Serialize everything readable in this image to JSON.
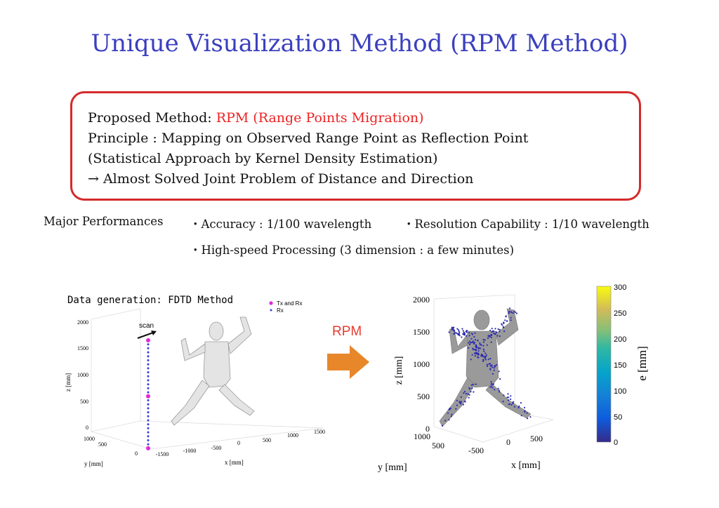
{
  "title": "Unique Visualization Method (RPM Method)",
  "box": {
    "line1_prefix": "Proposed Method: ",
    "line1_highlight": "RPM (Range Points Migration)",
    "line2": "Principle : Mapping on Observed Range Point as Reflection Point",
    "line3": "(Statistical Approach by Kernel Density Estimation)",
    "line4": "→ Almost Solved Joint Problem of Distance and Direction",
    "border_color": "#d42a2a",
    "highlight_color": "#e22222"
  },
  "performance": {
    "label": "Major Performances",
    "accuracy": "・Accuracy : 1/100 wavelength",
    "resolution": "・Resolution Capability : 1/10 wavelength",
    "speed": "・High-speed Processing (3 dimension : a few minutes)"
  },
  "left_plot": {
    "caption": "Data generation: FDTD Method",
    "legend": [
      "Tx and Rx",
      "Rx"
    ],
    "scan_label": "scan",
    "z_ticks": [
      "2000",
      "1500",
      "1000",
      "500",
      "0"
    ],
    "y_ticks": [
      "1000",
      "500",
      "0"
    ],
    "x_ticks": [
      "-1500",
      "-1000",
      "-500",
      "0",
      "500",
      "1000",
      "1500"
    ],
    "z_label": "z [mm]",
    "y_label": "y [mm]",
    "x_label": "x [mm]"
  },
  "arrow_label": "RPM",
  "right_plot": {
    "z_ticks": [
      "2000",
      "1500",
      "1000",
      "500",
      "0"
    ],
    "y_ticks": [
      "1000",
      "500"
    ],
    "x_ticks": [
      "-500",
      "0",
      "500"
    ],
    "z_label": "z [mm]",
    "y_label": "y [mm]",
    "x_label": "x [mm]"
  },
  "colorbar": {
    "ticks": [
      "300",
      "250",
      "200",
      "150",
      "100",
      "50",
      "0"
    ],
    "label": "e [mm]"
  },
  "colors": {
    "title": "#3b3fbf",
    "arrow": "#e8862a",
    "tx_marker": "#e22ad6",
    "rx_marker": "#3a3ae0",
    "points": "#2a2ab0"
  }
}
